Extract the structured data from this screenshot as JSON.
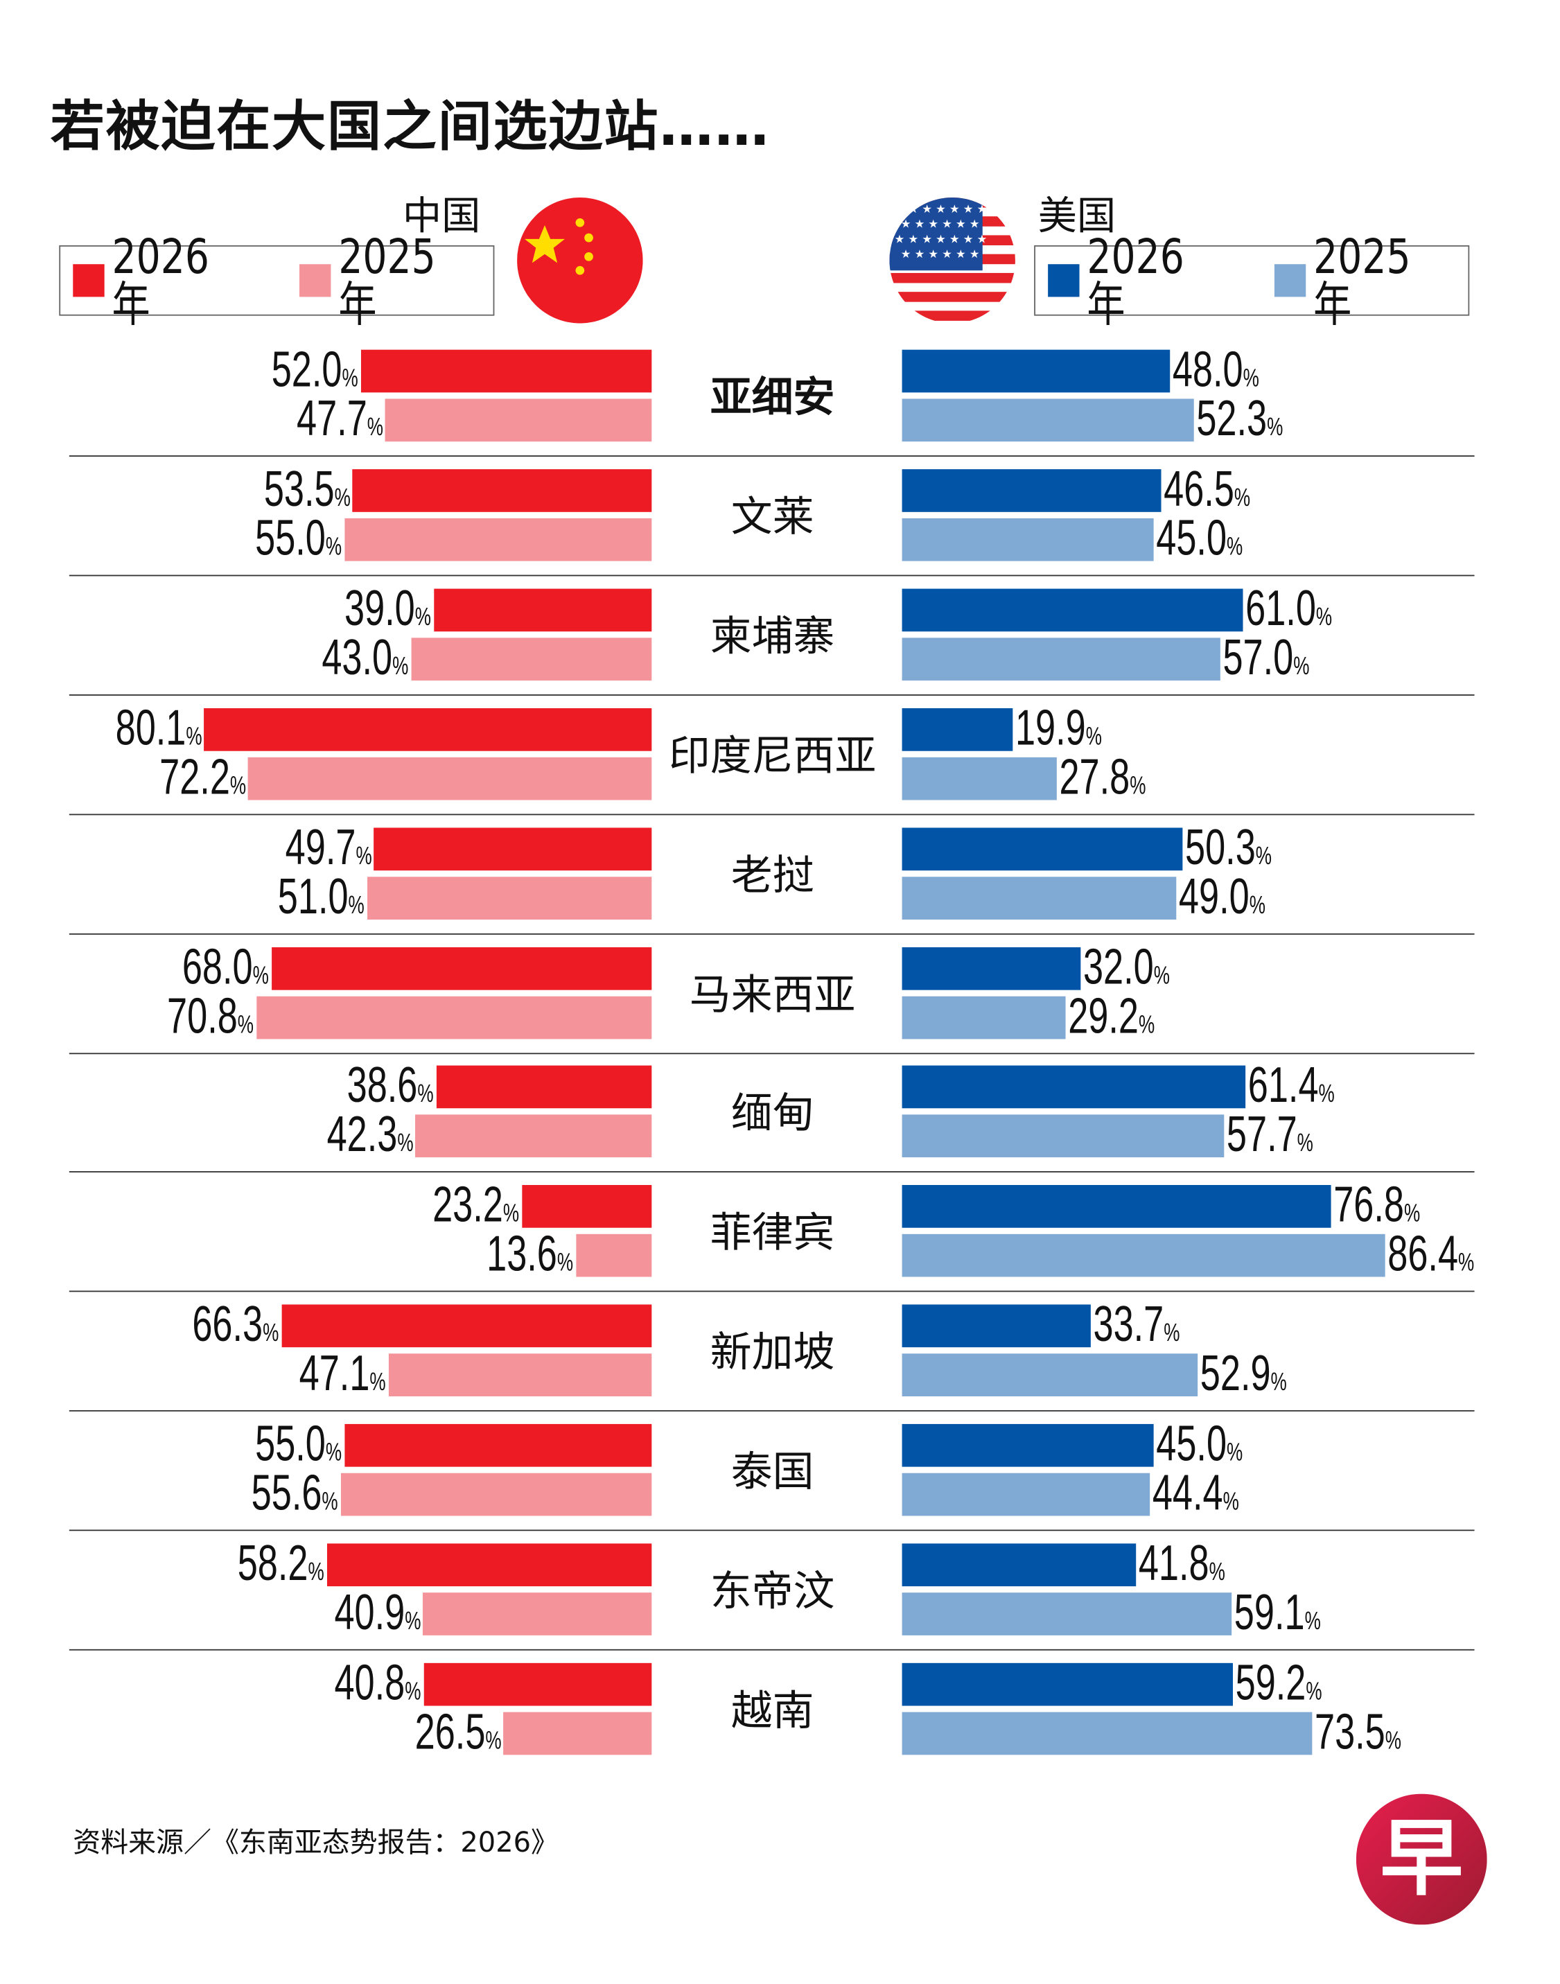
{
  "title": "若被迫在大国之间选边站……",
  "china": {
    "label": "中国",
    "legend": [
      "2026年",
      "2025年"
    ]
  },
  "usa": {
    "label": "美国",
    "legend": [
      "2026年",
      "2025年"
    ]
  },
  "source": "资料来源／《东南亚态势报告：2026》",
  "logo_text": "早",
  "colors": {
    "china_2026": "#ed1c24",
    "china_2025": "#f4939a",
    "usa_2026": "#0154a6",
    "usa_2025": "#80aad4"
  },
  "chart_data": {
    "type": "bar",
    "orientation": "horizontal-diverging",
    "unit": "%",
    "categories": [
      "亚细安",
      "文莱",
      "柬埔寨",
      "印度尼西亚",
      "老挝",
      "马来西亚",
      "缅甸",
      "菲律宾",
      "新加坡",
      "泰国",
      "东帝汶",
      "越南"
    ],
    "series": [
      {
        "name": "中国 2026年",
        "values": [
          52.0,
          53.5,
          39.0,
          80.1,
          49.7,
          68.0,
          38.6,
          23.2,
          66.3,
          55.0,
          58.2,
          40.8
        ]
      },
      {
        "name": "中国 2025年",
        "values": [
          47.7,
          55.0,
          43.0,
          72.2,
          51.0,
          70.8,
          42.3,
          13.6,
          47.1,
          55.6,
          40.9,
          26.5
        ]
      },
      {
        "name": "美国 2026年",
        "values": [
          48.0,
          46.5,
          61.0,
          19.9,
          50.3,
          32.0,
          61.4,
          76.8,
          33.7,
          45.0,
          41.8,
          59.2
        ]
      },
      {
        "name": "美国 2025年",
        "values": [
          52.3,
          45.0,
          57.0,
          27.8,
          49.0,
          29.2,
          57.7,
          86.4,
          52.9,
          44.4,
          59.1,
          73.5
        ]
      }
    ]
  }
}
